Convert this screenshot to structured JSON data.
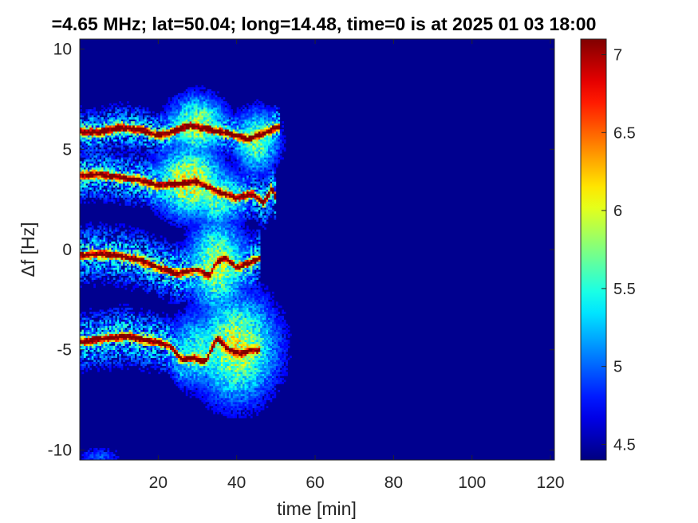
{
  "chart_data": {
    "type": "heatmap",
    "title": "=4.65 MHz;  lat=50.04; long=14.48, time=0 is at 2025 01 03 18:00",
    "xlabel": "time [min]",
    "ylabel": "Δf [Hz]",
    "xlim": [
      0,
      121
    ],
    "ylim": [
      -10.5,
      10.5
    ],
    "xticks": [
      20,
      40,
      60,
      80,
      100,
      120
    ],
    "yticks": [
      10,
      5,
      0,
      -5,
      -10
    ],
    "colorbar": {
      "colormap": "jet",
      "clim": [
        4.4,
        7.1
      ],
      "ticks": [
        7,
        6.5,
        6,
        5.5,
        5,
        4.5
      ]
    },
    "background_level": 4.45,
    "traces": [
      {
        "points": [
          [
            0,
            5.9
          ],
          [
            5,
            5.85
          ],
          [
            10,
            6.1
          ],
          [
            15,
            6.0
          ],
          [
            20,
            5.7
          ],
          [
            24,
            5.9
          ],
          [
            28,
            6.2
          ],
          [
            33,
            6.0
          ],
          [
            38,
            5.8
          ],
          [
            43,
            5.5
          ],
          [
            47,
            5.8
          ],
          [
            50,
            6.1
          ],
          [
            51,
            6.05
          ]
        ],
        "peak": 7.0,
        "halo": 0.7
      },
      {
        "points": [
          [
            0,
            3.7
          ],
          [
            5,
            3.75
          ],
          [
            10,
            3.6
          ],
          [
            15,
            3.5
          ],
          [
            20,
            3.2
          ],
          [
            25,
            3.3
          ],
          [
            30,
            3.4
          ],
          [
            35,
            2.9
          ],
          [
            40,
            2.6
          ],
          [
            44,
            2.8
          ],
          [
            47,
            2.3
          ],
          [
            49,
            3.1
          ],
          [
            50,
            2.5
          ]
        ],
        "peak": 6.9,
        "halo": 0.8
      },
      {
        "points": [
          [
            0,
            -0.3
          ],
          [
            5,
            -0.2
          ],
          [
            10,
            -0.3
          ],
          [
            15,
            -0.5
          ],
          [
            20,
            -0.9
          ],
          [
            25,
            -1.2
          ],
          [
            30,
            -1.0
          ],
          [
            33,
            -1.3
          ],
          [
            35,
            -0.6
          ],
          [
            37,
            -0.4
          ],
          [
            40,
            -0.9
          ],
          [
            44,
            -0.6
          ],
          [
            46,
            -0.4
          ]
        ],
        "peak": 6.9,
        "halo": 0.9
      },
      {
        "points": [
          [
            0,
            -4.6
          ],
          [
            4,
            -4.5
          ],
          [
            8,
            -4.4
          ],
          [
            12,
            -4.3
          ],
          [
            16,
            -4.5
          ],
          [
            20,
            -4.6
          ],
          [
            23,
            -4.8
          ],
          [
            26,
            -5.5
          ],
          [
            29,
            -5.4
          ],
          [
            32,
            -5.6
          ],
          [
            35,
            -4.4
          ],
          [
            38,
            -5.0
          ],
          [
            41,
            -5.2
          ],
          [
            44,
            -5.0
          ],
          [
            46,
            -5.0
          ]
        ],
        "peak": 7.0,
        "halo": 0.9
      }
    ],
    "blobs": [
      {
        "x": 30,
        "y": 6.2,
        "rx": 5,
        "ry": 1.0,
        "v": 6.0
      },
      {
        "x": 45,
        "y": 5.4,
        "rx": 4,
        "ry": 1.1,
        "v": 5.8
      },
      {
        "x": 28,
        "y": 3.4,
        "rx": 6,
        "ry": 1.2,
        "v": 6.2
      },
      {
        "x": 35,
        "y": 2.6,
        "rx": 5,
        "ry": 1.0,
        "v": 5.8
      },
      {
        "x": 35,
        "y": -0.8,
        "rx": 5,
        "ry": 1.6,
        "v": 6.0
      },
      {
        "x": 40,
        "y": -4.9,
        "rx": 7,
        "ry": 1.8,
        "v": 6.1
      },
      {
        "x": 30,
        "y": -5.0,
        "rx": 5,
        "ry": 1.3,
        "v": 5.6
      },
      {
        "x": 5,
        "y": -10.3,
        "rx": 4,
        "ry": 0.3,
        "v": 5.0
      }
    ]
  }
}
